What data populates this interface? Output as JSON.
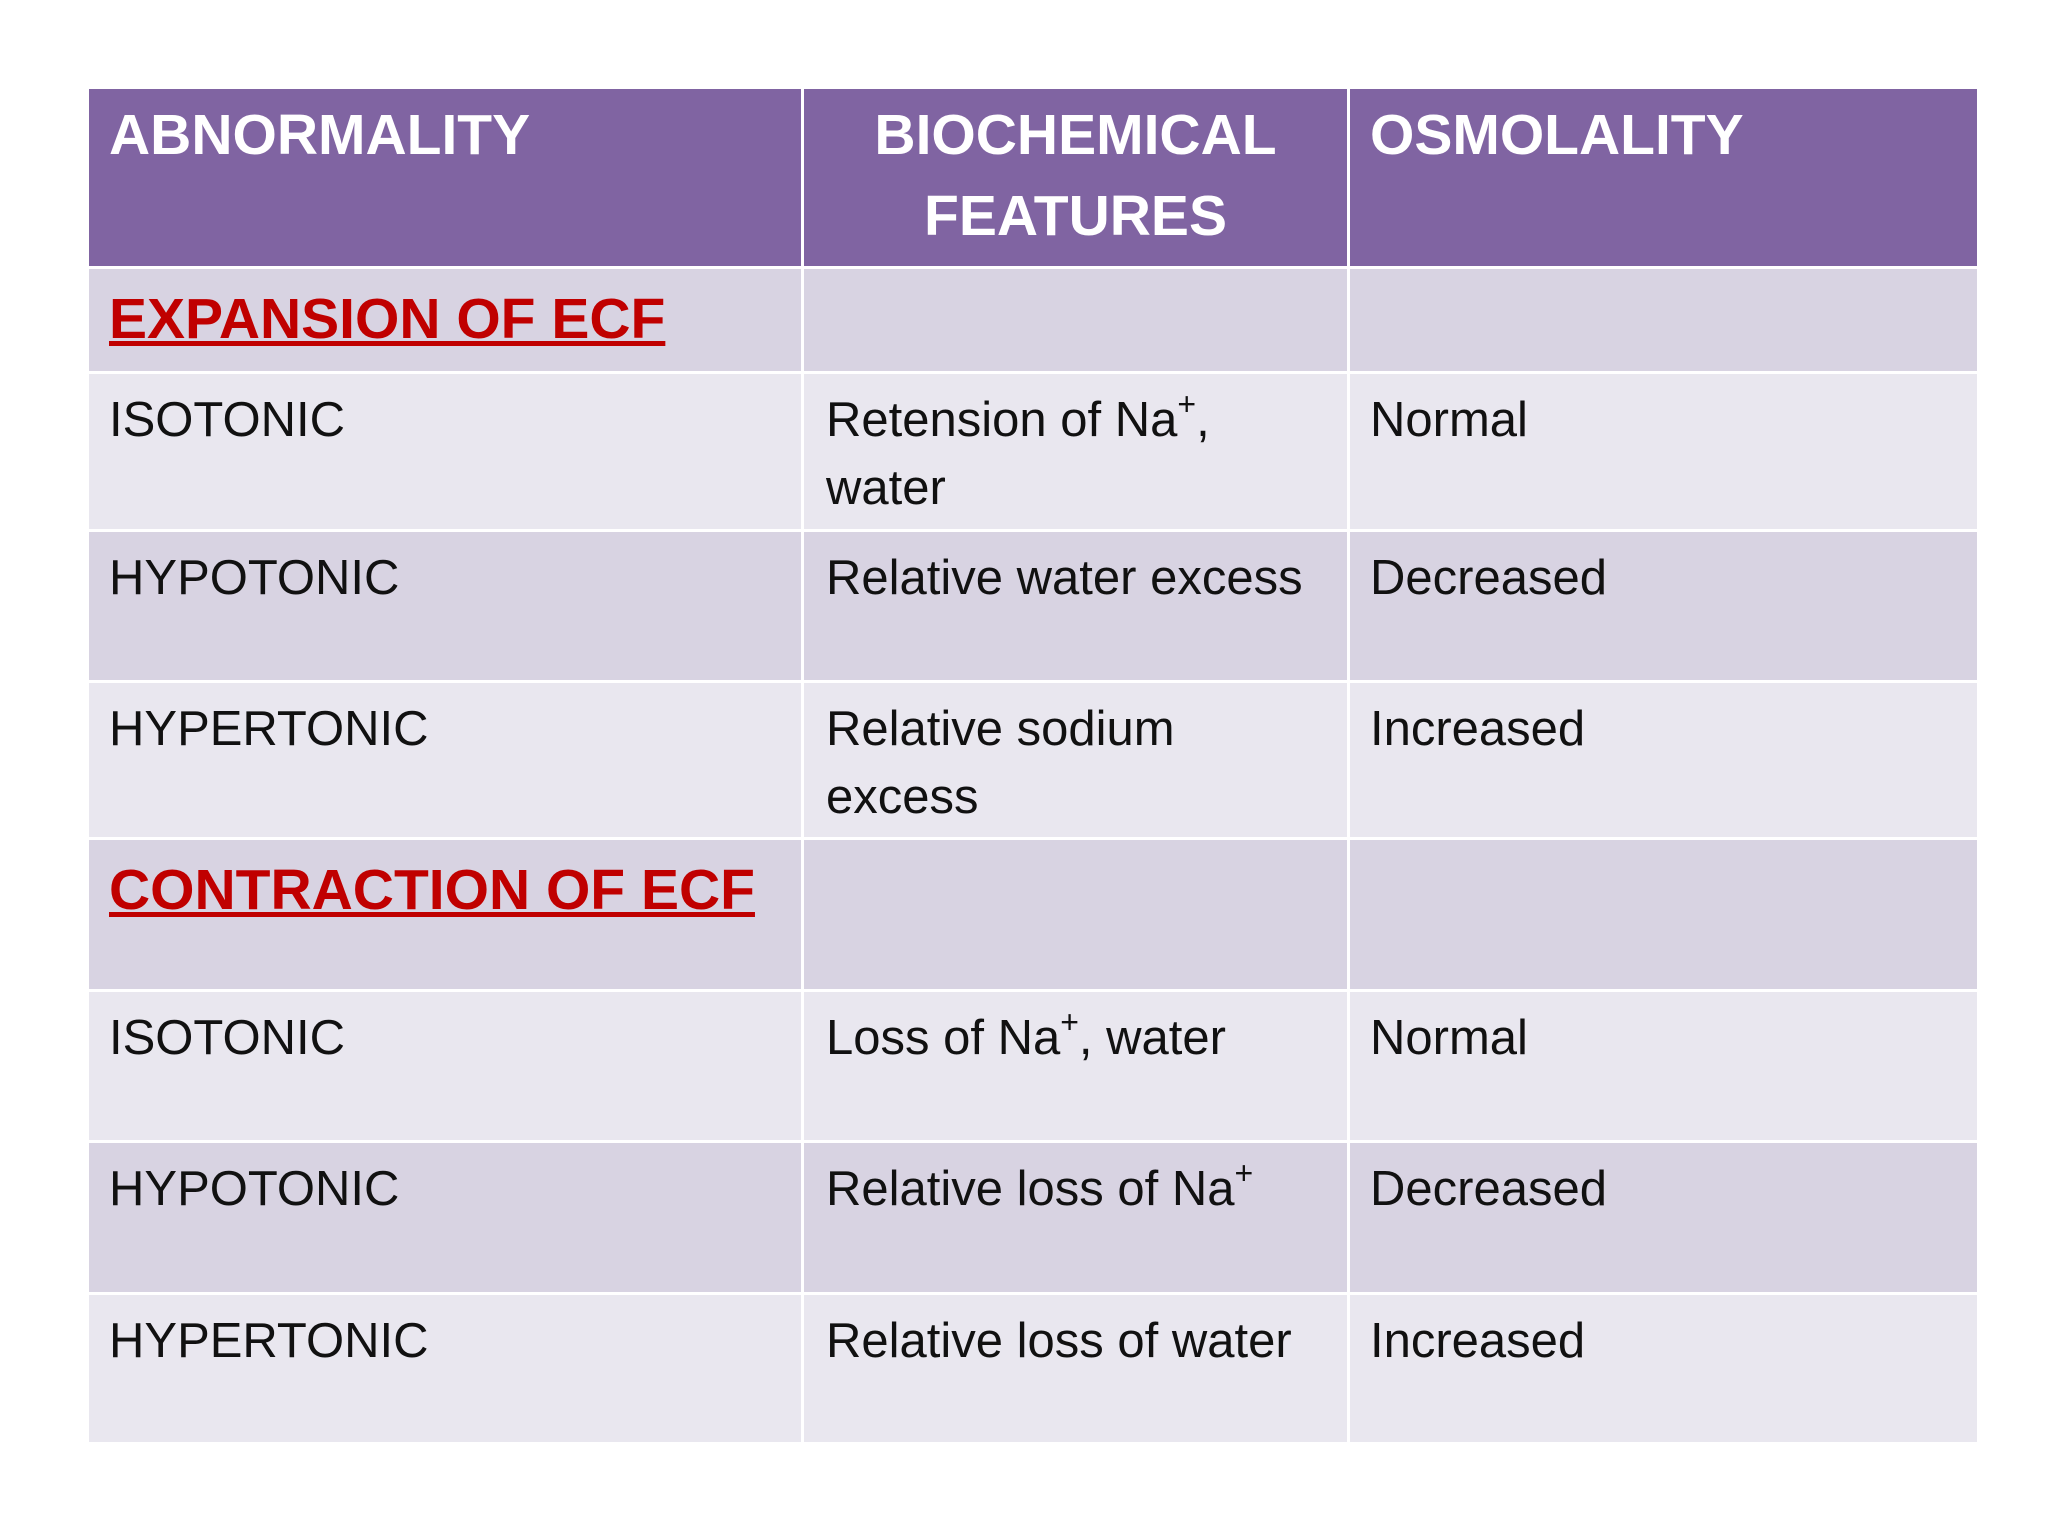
{
  "table": {
    "header": [
      "ABNORMALITY",
      "BIOCHEMICAL FEATURES",
      "OSMOLALITY"
    ],
    "sections": [
      {
        "title": "EXPANSION  OF  ECF",
        "rows": [
          {
            "abnormality": "ISOTONIC",
            "features": [
              {
                "text": "Retension of Na"
              },
              {
                "sup": "+"
              },
              {
                "text": ", water"
              }
            ],
            "osmolality": "Normal"
          },
          {
            "abnormality": "HYPOTONIC",
            "features": [
              {
                "text": "Relative water excess"
              }
            ],
            "osmolality": "Decreased"
          },
          {
            "abnormality": "HYPERTONIC",
            "features": [
              {
                "text": "Relative sodium excess"
              }
            ],
            "osmolality": "Increased"
          }
        ]
      },
      {
        "title": "CONTRACTION OF ECF",
        "rows": [
          {
            "abnormality": "ISOTONIC",
            "features": [
              {
                "text": "Loss of Na"
              },
              {
                "sup": "+"
              },
              {
                "text": ", water"
              }
            ],
            "osmolality": "Normal"
          },
          {
            "abnormality": "HYPOTONIC",
            "features": [
              {
                "text": "Relative loss of Na"
              },
              {
                "sup": "+"
              }
            ],
            "osmolality": "Decreased"
          },
          {
            "abnormality": "HYPERTONIC",
            "features": [
              {
                "text": "Relative loss of water"
              }
            ],
            "osmolality": "Increased"
          }
        ]
      }
    ]
  }
}
